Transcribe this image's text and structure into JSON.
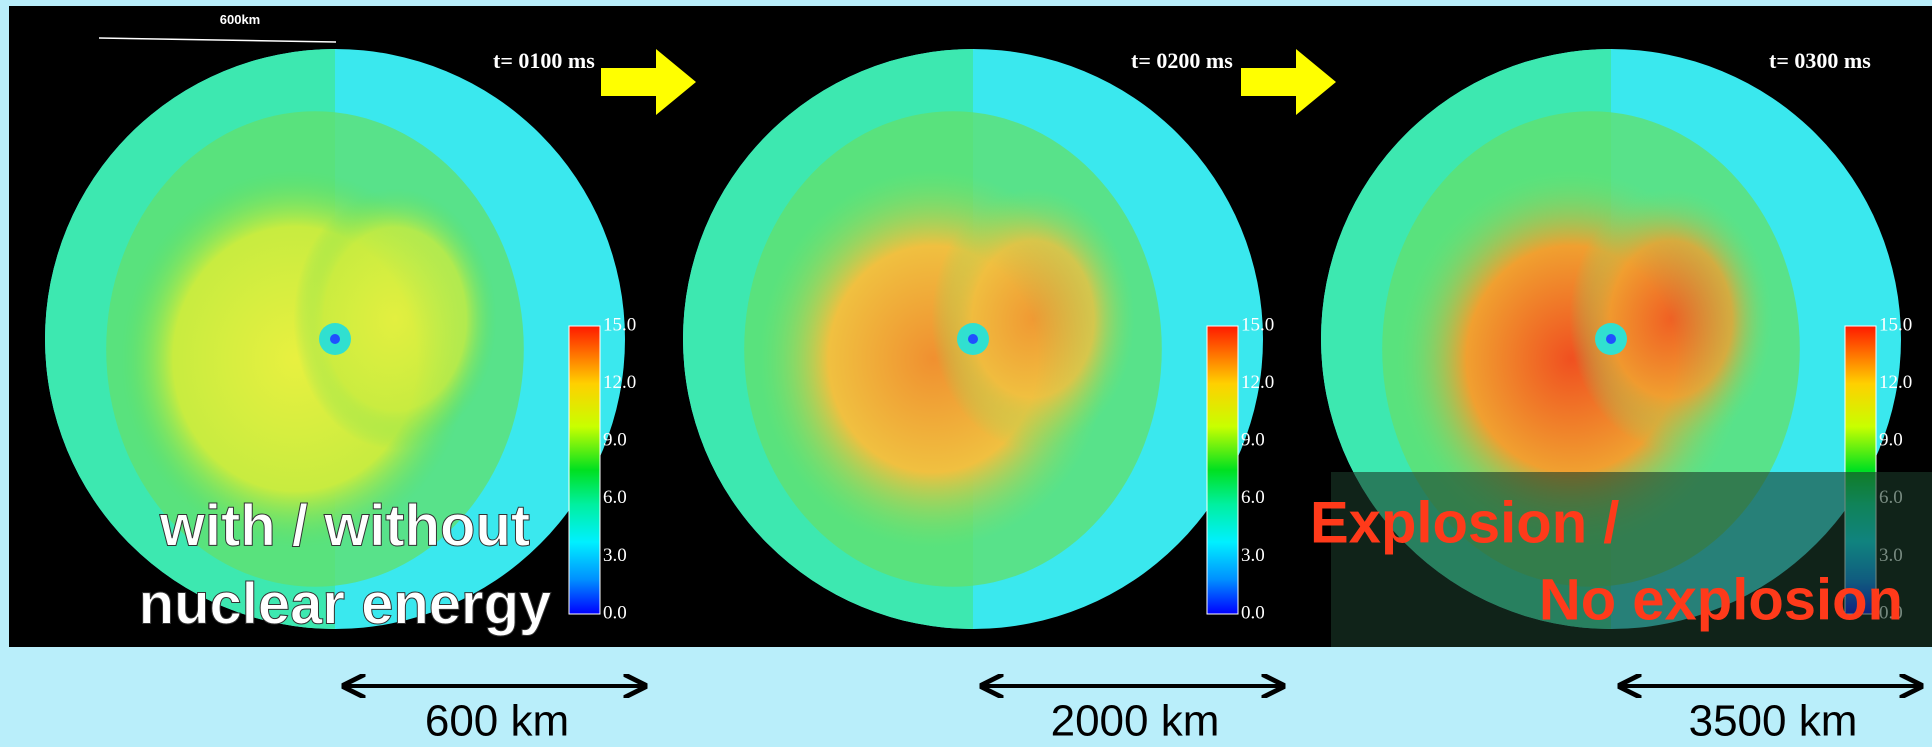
{
  "scale_bar": "600km",
  "panels": [
    {
      "time": "t= 0100 ms",
      "scale": "600 km"
    },
    {
      "time": "t= 0200 ms",
      "scale": "2000 km"
    },
    {
      "time": "t= 0300 ms",
      "scale": "3500 km"
    }
  ],
  "colorbar_ticks": [
    "15.0",
    "12.0",
    "9.0",
    "6.0",
    "3.0",
    "0.0"
  ],
  "left_caption": [
    "with / without",
    "nuclear energy"
  ],
  "right_caption": [
    "Explosion /",
    "No explosion"
  ]
}
